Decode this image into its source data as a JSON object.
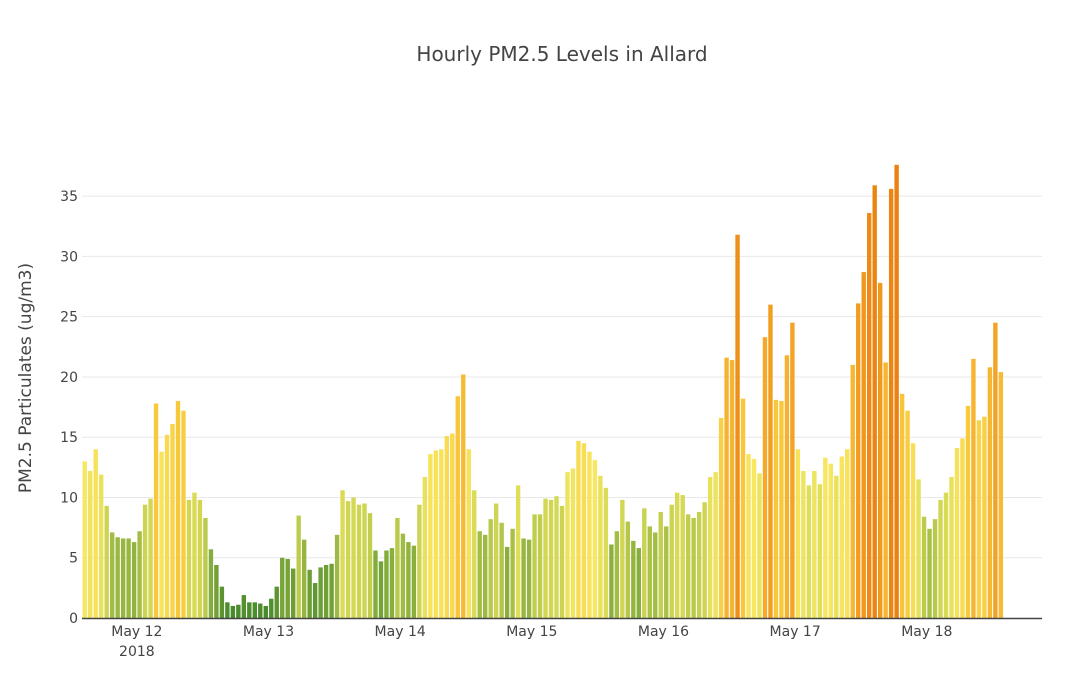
{
  "chart_data": {
    "type": "bar",
    "title": "Hourly PM2.5 Levels in Allard",
    "xlabel": "",
    "ylabel": "PM2.5 Particulates (ug/m3)",
    "ylim": [
      0,
      38
    ],
    "yticks": [
      0,
      5,
      10,
      15,
      20,
      25,
      30,
      35
    ],
    "xlim": [
      "2018-05-11 14:00",
      "2018-05-18 21:00"
    ],
    "xticks": [
      {
        "label": "May 12",
        "sublabel": "2018",
        "at": "2018-05-12 00:00"
      },
      {
        "label": "May 13",
        "sublabel": "",
        "at": "2018-05-13 00:00"
      },
      {
        "label": "May 14",
        "sublabel": "",
        "at": "2018-05-14 00:00"
      },
      {
        "label": "May 15",
        "sublabel": "",
        "at": "2018-05-15 00:00"
      },
      {
        "label": "May 16",
        "sublabel": "",
        "at": "2018-05-16 00:00"
      },
      {
        "label": "May 17",
        "sublabel": "",
        "at": "2018-05-17 00:00"
      },
      {
        "label": "May 18",
        "sublabel": "",
        "at": "2018-05-18 00:00"
      }
    ],
    "grid": true,
    "start": "2018-05-11 14:00",
    "interval": "1 hour",
    "values": [
      13.0,
      12.2,
      14.0,
      11.9,
      9.3,
      7.1,
      6.7,
      6.6,
      6.6,
      6.3,
      7.2,
      9.4,
      9.9,
      17.8,
      13.8,
      15.2,
      16.1,
      18.0,
      17.2,
      9.8,
      10.4,
      9.8,
      8.3,
      5.7,
      4.4,
      2.6,
      1.3,
      1.0,
      1.1,
      1.9,
      1.3,
      1.3,
      1.2,
      1.0,
      1.6,
      2.6,
      5.0,
      4.9,
      4.1,
      8.5,
      6.5,
      4.0,
      2.9,
      4.2,
      4.4,
      4.5,
      6.9,
      10.6,
      9.7,
      10.0,
      9.4,
      9.5,
      8.7,
      5.6,
      4.7,
      5.6,
      5.8,
      8.3,
      7.0,
      6.3,
      6.0,
      9.4,
      11.7,
      13.6,
      13.9,
      14.0,
      15.1,
      15.3,
      18.4,
      20.2,
      14.0,
      10.6,
      7.2,
      6.9,
      8.2,
      9.5,
      7.9,
      5.9,
      7.4,
      11.0,
      6.6,
      6.5,
      8.6,
      8.6,
      9.9,
      9.8,
      10.1,
      9.3,
      12.1,
      12.4,
      14.7,
      14.5,
      13.8,
      13.1,
      11.8,
      10.8,
      6.1,
      7.2,
      9.8,
      8.0,
      6.4,
      5.8,
      9.1,
      7.6,
      7.1,
      8.8,
      7.6,
      9.4,
      10.4,
      10.2,
      8.6,
      8.3,
      8.8,
      9.6,
      11.7,
      12.1,
      16.6,
      21.6,
      21.4,
      31.8,
      18.2,
      13.6,
      13.2,
      12.0,
      23.3,
      26.0,
      18.1,
      18.0,
      21.8,
      24.5,
      14.0,
      12.2,
      11.0,
      12.2,
      11.1,
      13.3,
      12.8,
      11.8,
      13.4,
      14.0,
      21.0,
      26.1,
      28.7,
      33.6,
      35.9,
      27.8,
      21.2,
      35.6,
      37.6,
      18.6,
      17.2,
      14.5,
      11.5,
      8.4,
      7.4,
      8.2,
      9.8,
      10.4,
      11.7,
      14.1,
      14.9,
      17.6,
      21.5,
      16.4,
      16.7,
      20.8,
      24.5,
      20.4
    ]
  }
}
